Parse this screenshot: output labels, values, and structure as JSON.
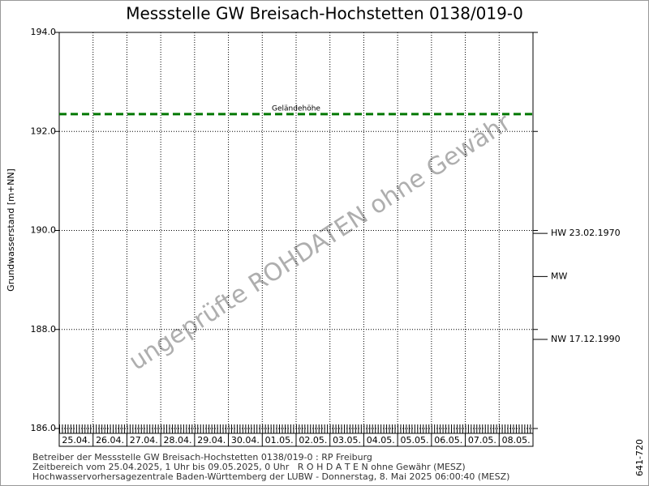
{
  "chart_data": {
    "type": "line",
    "title": "Messstelle GW Breisach-Hochstetten 0138/019-0",
    "y_label": "Grundwasserstand [m+NN]",
    "categories": [
      "25.04.",
      "26.04.",
      "27.04.",
      "28.04.",
      "29.04.",
      "30.04.",
      "01.05.",
      "02.05.",
      "03.05.",
      "04.05.",
      "05.05.",
      "06.05.",
      "07.05.",
      "08.05."
    ],
    "ylim": [
      186,
      194
    ],
    "yticks": [
      {
        "value": 186,
        "label": "186.0"
      },
      {
        "value": 188,
        "label": "188.0"
      },
      {
        "value": 190,
        "label": "190.0"
      },
      {
        "value": 192,
        "label": "192.0"
      },
      {
        "value": 194,
        "label": "194.0"
      }
    ],
    "grid": true,
    "reference_lines": [
      {
        "label": "Geländehöhe",
        "value": 192.35,
        "color": "#007700"
      }
    ],
    "levels": [
      {
        "label": "HW 23.02.1970",
        "value": 189.94
      },
      {
        "label": "MW",
        "value": 189.07
      },
      {
        "label": "NW 17.12.1990",
        "value": 187.8
      }
    ],
    "watermark": "ungeprüfte ROHDATEN ohne Gewähr",
    "footer": [
      "Betreiber der Messstelle GW Breisach-Hochstetten 0138/019-0 : RP Freiburg",
      "Zeitbereich vom 25.04.2025, 1 Uhr bis 09.05.2025, 0 Uhr   R O H D A T E N ohne Gewähr (MESZ)",
      "Hochwasservorhersagezentrale Baden-Württemberg der LUBW - Donnerstag, 8. Mai 2025 06:00:40 (MESZ)"
    ],
    "side_label": "641-720"
  }
}
